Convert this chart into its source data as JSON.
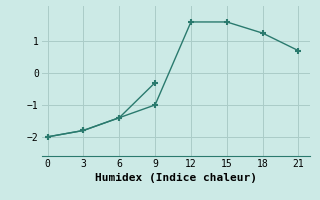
{
  "line1_x": [
    0,
    3,
    6,
    9,
    12,
    15,
    18,
    21
  ],
  "line1_y": [
    -2.0,
    -1.8,
    -1.4,
    -1.0,
    1.6,
    1.6,
    1.25,
    0.7
  ],
  "line2_x": [
    0,
    3,
    6,
    9
  ],
  "line2_y": [
    -2.0,
    -1.8,
    -1.4,
    -0.3
  ],
  "color": "#2a7a6e",
  "bg_color": "#cceae6",
  "grid_color": "#aaccc8",
  "xlabel": "Humidex (Indice chaleur)",
  "xlim": [
    -0.5,
    22
  ],
  "ylim": [
    -2.6,
    2.1
  ],
  "yticks": [
    -2,
    -1,
    0,
    1
  ],
  "xticks": [
    0,
    3,
    6,
    9,
    12,
    15,
    18,
    21
  ],
  "marker": "+",
  "markersize": 5,
  "markeredgewidth": 1.5,
  "linewidth": 1.0,
  "xlabel_fontsize": 8,
  "tick_fontsize": 7
}
